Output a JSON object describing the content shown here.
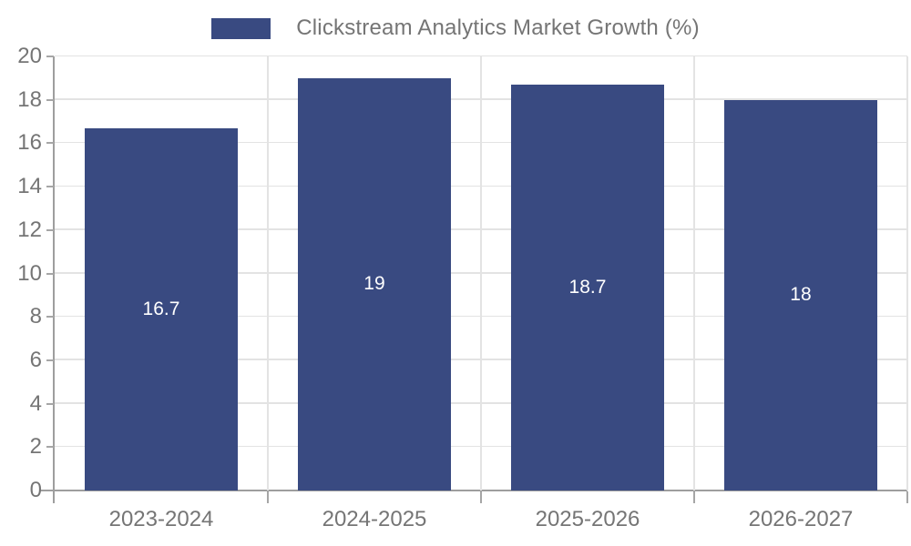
{
  "chart_data": {
    "type": "bar",
    "legend_label": "Clickstream Analytics Market Growth (%)",
    "legend_position": "top-center",
    "categories": [
      "2023-2024",
      "2024-2025",
      "2025-2026",
      "2026-2027"
    ],
    "values": [
      16.7,
      19,
      18.7,
      18
    ],
    "value_labels": [
      "16.7",
      "19",
      "18.7",
      "18"
    ],
    "title": "",
    "xlabel": "",
    "ylabel": "",
    "ylim": [
      0,
      20
    ],
    "yticks": [
      0,
      2,
      4,
      6,
      8,
      10,
      12,
      14,
      16,
      18,
      20
    ],
    "grid": true,
    "bar_color": "#394A81",
    "bar_label_color": "#ffffff",
    "axis_color": "#9e9e9e",
    "grid_color": "#e3e3e3",
    "tick_label_color": "#757575",
    "bar_width_fraction": 0.718
  }
}
